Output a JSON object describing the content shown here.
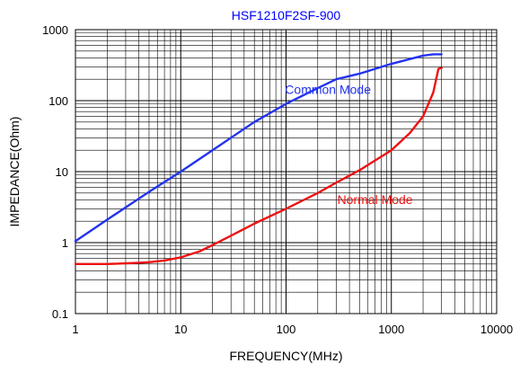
{
  "chart_data": {
    "type": "line",
    "title": "HSF1210F2SF-900",
    "xlabel": "FREQUENCY(MHz)",
    "ylabel": "IMPEDANCE(Ohm)",
    "x_scale": "log",
    "y_scale": "log",
    "xlim": [
      1,
      10000
    ],
    "ylim": [
      0.1,
      1000
    ],
    "x_ticks": [
      1,
      10,
      100,
      1000,
      10000
    ],
    "x_tick_labels": [
      "1",
      "10",
      "100",
      "1000",
      "10000"
    ],
    "y_ticks": [
      0.1,
      1,
      10,
      100,
      1000
    ],
    "y_tick_labels": [
      "0.1",
      "1",
      "10",
      "100",
      "1000"
    ],
    "grid": true,
    "legend": "none",
    "colors": {
      "title": "#0000ff",
      "grid": "#000000",
      "frame": "#000000"
    },
    "series": [
      {
        "name": "Common Mode",
        "color": "#2233ee",
        "label_at": [
          250,
          125
        ],
        "x": [
          1,
          2,
          5,
          10,
          20,
          30,
          50,
          100,
          200,
          300,
          500,
          1000,
          2000,
          2500,
          3000
        ],
        "y": [
          1.05,
          2.1,
          5.2,
          10,
          20,
          30,
          50,
          90,
          150,
          200,
          240,
          330,
          430,
          450,
          450
        ]
      },
      {
        "name": "Normal Mode",
        "color": "#ee1111",
        "label_at": [
          700,
          3.5
        ],
        "x": [
          1,
          2,
          3,
          4,
          5,
          7,
          10,
          15,
          20,
          30,
          50,
          100,
          200,
          300,
          500,
          1000,
          1500,
          2000,
          2500,
          2800,
          3000
        ],
        "y": [
          0.5,
          0.5,
          0.51,
          0.52,
          0.53,
          0.56,
          0.62,
          0.75,
          0.92,
          1.25,
          1.85,
          3,
          5,
          7,
          10.5,
          20,
          35,
          60,
          130,
          280,
          290
        ]
      }
    ]
  }
}
